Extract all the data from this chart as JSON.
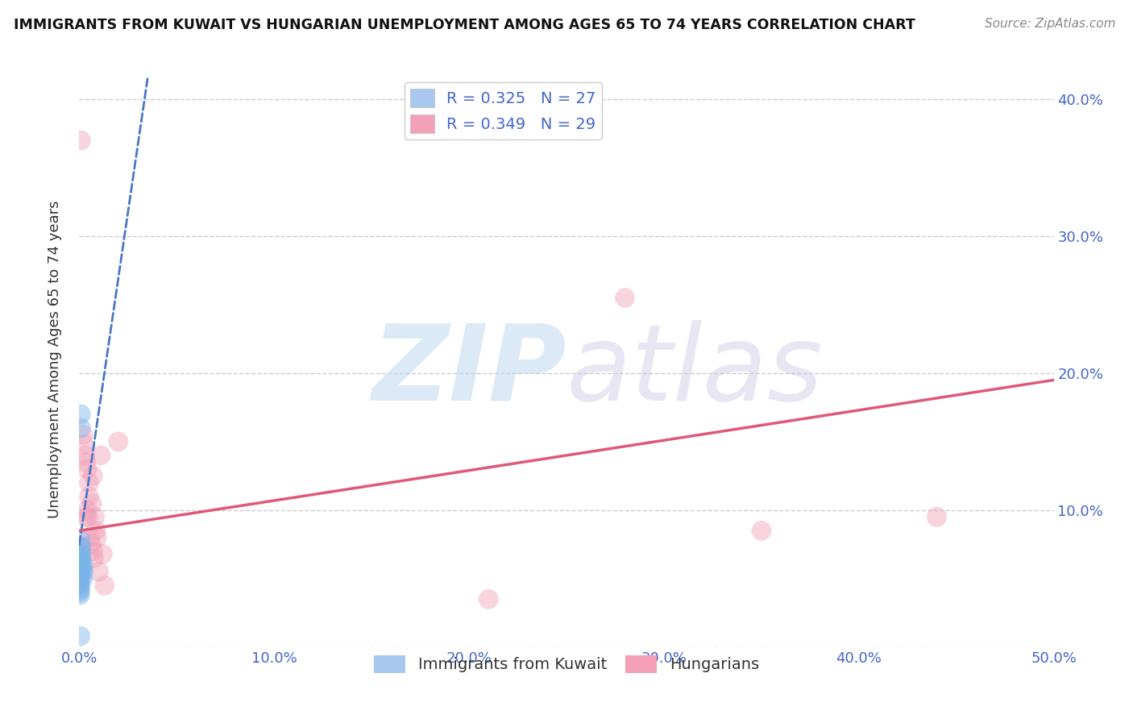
{
  "title": "IMMIGRANTS FROM KUWAIT VS HUNGARIAN UNEMPLOYMENT AMONG AGES 65 TO 74 YEARS CORRELATION CHART",
  "source": "Source: ZipAtlas.com",
  "ylabel": "Unemployment Among Ages 65 to 74 years",
  "xlim": [
    0.0,
    0.5
  ],
  "ylim": [
    0.0,
    0.42
  ],
  "xticks": [
    0.0,
    0.1,
    0.2,
    0.3,
    0.4,
    0.5
  ],
  "yticks": [
    0.0,
    0.1,
    0.2,
    0.3,
    0.4
  ],
  "xticklabels": [
    "0.0%",
    "10.0%",
    "20.0%",
    "30.0%",
    "40.0%",
    "50.0%"
  ],
  "yticklabels_left": [
    "",
    "",
    "",
    "",
    ""
  ],
  "yticklabels_right": [
    "",
    "10.0%",
    "20.0%",
    "30.0%",
    "40.0%"
  ],
  "legend_r_n_label1": "R = 0.325   N = 27",
  "legend_r_n_label2": "R = 0.349   N = 29",
  "legend_color1": "#a8c8f0",
  "legend_color2": "#f4a0b8",
  "blue_color": "#7ab4e8",
  "pink_color": "#f0a0b8",
  "trendline_blue_color": "#4878c8",
  "trendline_pink_color": "#e05878",
  "watermark_zip": "ZIP",
  "watermark_atlas": "atlas",
  "background_color": "#ffffff",
  "grid_color": "#cccccc",
  "tick_color": "#4466cc",
  "blue_scatter": [
    [
      0.0008,
      0.17
    ],
    [
      0.0008,
      0.16
    ],
    [
      0.0006,
      0.078
    ],
    [
      0.0006,
      0.073
    ],
    [
      0.0007,
      0.068
    ],
    [
      0.0007,
      0.065
    ],
    [
      0.0005,
      0.063
    ],
    [
      0.0005,
      0.06
    ],
    [
      0.0005,
      0.057
    ],
    [
      0.0005,
      0.055
    ],
    [
      0.0004,
      0.052
    ],
    [
      0.0004,
      0.05
    ],
    [
      0.0004,
      0.048
    ],
    [
      0.0004,
      0.046
    ],
    [
      0.0003,
      0.044
    ],
    [
      0.0003,
      0.042
    ],
    [
      0.0003,
      0.04
    ],
    [
      0.0003,
      0.038
    ],
    [
      0.001,
      0.073
    ],
    [
      0.001,
      0.068
    ],
    [
      0.0012,
      0.063
    ],
    [
      0.0012,
      0.058
    ],
    [
      0.0015,
      0.055
    ],
    [
      0.0018,
      0.05
    ],
    [
      0.002,
      0.06
    ],
    [
      0.0022,
      0.055
    ],
    [
      0.0005,
      0.008
    ]
  ],
  "pink_scatter": [
    [
      0.0008,
      0.37
    ],
    [
      0.002,
      0.155
    ],
    [
      0.0025,
      0.148
    ],
    [
      0.003,
      0.14
    ],
    [
      0.0035,
      0.135
    ],
    [
      0.0035,
      0.095
    ],
    [
      0.004,
      0.13
    ],
    [
      0.004,
      0.1
    ],
    [
      0.0045,
      0.095
    ],
    [
      0.005,
      0.12
    ],
    [
      0.005,
      0.11
    ],
    [
      0.0055,
      0.08
    ],
    [
      0.006,
      0.075
    ],
    [
      0.0065,
      0.105
    ],
    [
      0.007,
      0.07
    ],
    [
      0.007,
      0.125
    ],
    [
      0.0075,
      0.065
    ],
    [
      0.008,
      0.095
    ],
    [
      0.0085,
      0.085
    ],
    [
      0.009,
      0.08
    ],
    [
      0.01,
      0.055
    ],
    [
      0.011,
      0.14
    ],
    [
      0.012,
      0.068
    ],
    [
      0.013,
      0.045
    ],
    [
      0.02,
      0.15
    ],
    [
      0.28,
      0.255
    ],
    [
      0.35,
      0.085
    ],
    [
      0.44,
      0.095
    ],
    [
      0.21,
      0.035
    ]
  ],
  "blue_trendline": [
    [
      0.0,
      0.075
    ],
    [
      0.035,
      0.415
    ]
  ],
  "pink_trendline": [
    [
      0.0,
      0.085
    ],
    [
      0.5,
      0.195
    ]
  ],
  "cat_label1": "Immigrants from Kuwait",
  "cat_label2": "Hungarians"
}
